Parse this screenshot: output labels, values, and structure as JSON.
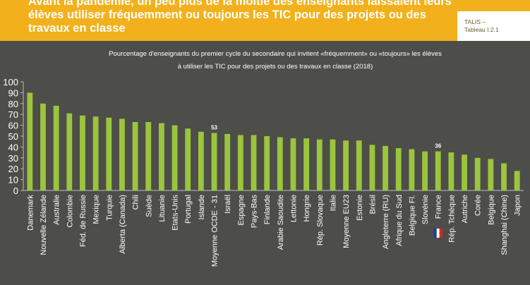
{
  "header": {
    "title": "Avant la pandémie, un peu plus de la moitié des enseignants laissaient leurs élèves utiliser fréquemment ou toujours les TIC pour des projets ou des travaux en classe",
    "tag": "TALIS –\nTableau I.2.1"
  },
  "colors": {
    "header_bg": "#f2b11c",
    "panel_bg": "#4d4d49",
    "bar": "#9bc53d"
  },
  "icons": [
    "france-flag-icon"
  ],
  "chart_data": {
    "type": "bar",
    "title_line1": "Pourcentage d'enseignants du premier cycle du secondaire qui invitent  «fréquemment» ou «toujours» les élèves",
    "title_line2": "à utiliser les TIC pour des projets ou des travaux en classe (2018)",
    "ylim": [
      0,
      100
    ],
    "yticks": [
      0,
      10,
      20,
      30,
      40,
      50,
      60,
      70,
      80,
      90,
      100
    ],
    "categories": [
      "Danemark",
      "Nouvelle Zélande",
      "Australie",
      "Colombie",
      "Féd. de Russie",
      "Mexique",
      "Turquie",
      "Alberta (Canada)",
      "Chili",
      "Suède",
      "Lituanie",
      "Etats-Unis",
      "Portugal",
      "Islande",
      "Moyenne OCDE - 31",
      "Israël",
      "Espagne",
      "Pays-Bas",
      "Finlande",
      "Arabie Saoudite",
      "Lettonie",
      "Hongrie",
      "Rép. Slovaque",
      "Italie",
      "Moyenne EU23",
      "Estonie",
      "Brésil",
      "Angleterre (RU)",
      "Afrique du Sud",
      "Belgique Fl.",
      "Slovénie",
      "France",
      "Rép. Tchèque",
      "Autriche",
      "Corée",
      "Belgique",
      "Shanghai (Chine)",
      "Japon"
    ],
    "values": [
      90,
      80,
      78,
      71,
      69,
      68,
      67,
      66,
      63,
      63,
      62,
      60,
      57,
      54,
      53,
      52,
      51,
      51,
      50,
      49,
      48,
      48,
      47,
      47,
      46,
      46,
      42,
      41,
      39,
      38,
      36,
      36,
      35,
      33,
      30,
      29,
      25,
      18
    ],
    "data_labels": [
      {
        "category": "Moyenne OCDE - 31",
        "text": "53"
      },
      {
        "category": "France",
        "text": "36"
      }
    ]
  }
}
